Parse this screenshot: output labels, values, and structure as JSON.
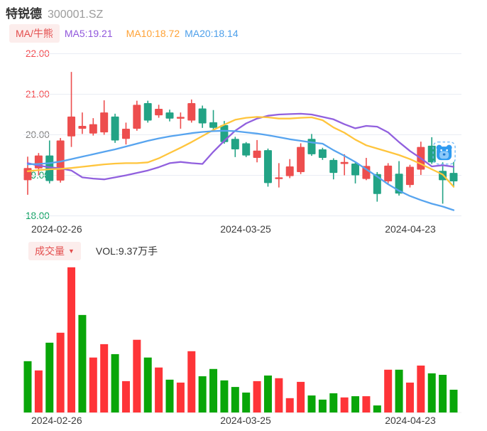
{
  "header": {
    "name": "特锐德",
    "code": "300001.SZ"
  },
  "indicator_bar": {
    "badge_label": "MA/牛熊",
    "items": [
      {
        "label": "MA5:19.21",
        "color": "#9157DC"
      },
      {
        "label": "MA10:18.72",
        "color": "#FFA235"
      },
      {
        "label": "MA20:18.14",
        "color": "#4D9FEA"
      }
    ]
  },
  "volume_bar": {
    "badge_label": "成交量",
    "arrow": "▼",
    "value_label": "VOL:9.37万手"
  },
  "colors": {
    "grid": "#E9EDF4",
    "baseline": "#EFEFEF",
    "candle_up": "#ED4E4E",
    "candle_down": "#22A385",
    "vol_up": "#FE3438",
    "vol_down": "#09A609",
    "marker_blue": "#2F9BF0",
    "marker_light": "#8CC9F9",
    "marker_dash": "#74BBF7"
  },
  "chart_data": {
    "type": "candlestick+volume",
    "title": "特锐德 300001.SZ",
    "ylim": [
      18,
      22
    ],
    "y_ticks": [
      {
        "label": "22.00",
        "value": 22,
        "color": "#F14B50"
      },
      {
        "label": "21.00",
        "value": 21,
        "color": "#F14B50"
      },
      {
        "label": "20.00",
        "value": 20,
        "color": "#808080"
      },
      {
        "label": "19.00",
        "value": 19,
        "color": "#0C9F60"
      },
      {
        "label": "18.00",
        "value": 18,
        "color": "#0C9F60"
      }
    ],
    "x_tick_labels": [
      "2024-02-26",
      "2024-03-25",
      "2024-04-23"
    ],
    "dates": [
      "2024-02-26",
      "2024-02-27",
      "2024-02-28",
      "2024-02-29",
      "2024-03-01",
      "2024-03-04",
      "2024-03-05",
      "2024-03-06",
      "2024-03-07",
      "2024-03-08",
      "2024-03-11",
      "2024-03-12",
      "2024-03-13",
      "2024-03-14",
      "2024-03-15",
      "2024-03-18",
      "2024-03-19",
      "2024-03-20",
      "2024-03-21",
      "2024-03-22",
      "2024-03-25",
      "2024-03-26",
      "2024-03-27",
      "2024-03-28",
      "2024-03-29",
      "2024-04-01",
      "2024-04-02",
      "2024-04-03",
      "2024-04-08",
      "2024-04-09",
      "2024-04-10",
      "2024-04-11",
      "2024-04-12",
      "2024-04-15",
      "2024-04-16",
      "2024-04-17",
      "2024-04-18",
      "2024-04-19",
      "2024-04-22",
      "2024-04-23"
    ],
    "candles_ohlc_order": [
      "open",
      "high",
      "low",
      "close"
    ],
    "candles": [
      [
        18.88,
        19.46,
        18.52,
        19.18
      ],
      [
        19.17,
        19.55,
        19.0,
        19.49
      ],
      [
        19.49,
        19.86,
        18.8,
        18.86
      ],
      [
        18.87,
        19.92,
        18.82,
        19.86
      ],
      [
        19.96,
        21.55,
        19.7,
        20.45
      ],
      [
        20.15,
        20.55,
        20.02,
        20.22
      ],
      [
        20.03,
        20.41,
        19.98,
        20.26
      ],
      [
        20.06,
        20.85,
        20.0,
        20.55
      ],
      [
        20.45,
        20.52,
        19.8,
        19.86
      ],
      [
        19.9,
        20.3,
        19.76,
        20.15
      ],
      [
        20.15,
        20.84,
        20.1,
        20.74
      ],
      [
        20.78,
        20.84,
        20.3,
        20.35
      ],
      [
        20.48,
        20.74,
        20.42,
        20.64
      ],
      [
        20.55,
        20.62,
        20.33,
        20.4
      ],
      [
        20.4,
        20.55,
        20.15,
        20.44
      ],
      [
        20.35,
        20.87,
        20.3,
        20.78
      ],
      [
        20.65,
        20.72,
        20.17,
        20.28
      ],
      [
        20.31,
        20.61,
        20.08,
        20.17
      ],
      [
        20.24,
        20.34,
        19.78,
        19.82
      ],
      [
        19.9,
        19.95,
        19.45,
        19.64
      ],
      [
        19.79,
        19.82,
        19.45,
        19.49
      ],
      [
        19.43,
        19.87,
        19.32,
        19.61
      ],
      [
        19.62,
        19.66,
        18.72,
        18.81
      ],
      [
        18.91,
        19.3,
        18.7,
        18.95
      ],
      [
        18.98,
        19.4,
        18.93,
        19.22
      ],
      [
        19.08,
        19.79,
        19.03,
        19.7
      ],
      [
        19.9,
        20.02,
        19.48,
        19.52
      ],
      [
        19.64,
        19.68,
        19.38,
        19.43
      ],
      [
        19.38,
        19.42,
        18.9,
        19.06
      ],
      [
        19.28,
        19.52,
        19.0,
        19.33
      ],
      [
        19.29,
        19.33,
        18.8,
        19.0
      ],
      [
        18.91,
        19.43,
        18.88,
        19.23
      ],
      [
        19.03,
        19.08,
        18.35,
        18.54
      ],
      [
        18.85,
        19.3,
        18.8,
        19.24
      ],
      [
        19.04,
        19.35,
        18.5,
        18.55
      ],
      [
        18.76,
        19.26,
        18.7,
        19.21
      ],
      [
        19.14,
        19.83,
        19.01,
        19.7
      ],
      [
        19.73,
        19.94,
        19.28,
        19.32
      ],
      [
        19.11,
        19.32,
        18.3,
        18.88
      ],
      [
        19.06,
        19.33,
        18.7,
        18.85
      ]
    ],
    "volumes_wanshou": [
      21.1,
      17.3,
      28.7,
      32.8,
      59.7,
      40.1,
      22.6,
      28.1,
      24.0,
      12.9,
      29.9,
      22.6,
      18.5,
      13.5,
      12.3,
      25.2,
      14.9,
      17.9,
      13.2,
      10.5,
      8.2,
      12.9,
      15.2,
      14.1,
      5.9,
      12.6,
      7.0,
      5.3,
      7.9,
      6.2,
      6.7,
      6.7,
      2.9,
      17.6,
      17.6,
      12.3,
      19.3,
      16.1,
      15.5,
      9.37
    ],
    "volume_direction": [
      "d",
      "u",
      "d",
      "u",
      "u",
      "d",
      "u",
      "u",
      "d",
      "u",
      "u",
      "d",
      "u",
      "d",
      "u",
      "u",
      "d",
      "d",
      "d",
      "d",
      "d",
      "u",
      "d",
      "u",
      "u",
      "u",
      "d",
      "d",
      "d",
      "u",
      "d",
      "u",
      "d",
      "u",
      "d",
      "u",
      "u",
      "d",
      "d",
      "d"
    ],
    "latest_volume_label": "VOL:9.37万手",
    "ma_series": [
      {
        "name": "MA5",
        "legend": "MA5:19.21",
        "color": "#9160DE",
        "values": [
          19.3,
          19.24,
          19.2,
          19.17,
          19.12,
          18.95,
          18.92,
          18.9,
          18.95,
          19.0,
          19.06,
          19.12,
          19.2,
          19.3,
          19.33,
          19.3,
          19.28,
          19.58,
          19.85,
          20.1,
          20.28,
          20.4,
          20.47,
          20.5,
          20.51,
          20.52,
          20.5,
          20.44,
          20.38,
          20.26,
          20.16,
          20.22,
          20.2,
          20.06,
          19.82,
          19.6,
          19.42,
          19.22,
          19.25,
          19.21
        ]
      },
      {
        "name": "MA10",
        "legend": "MA10:18.72",
        "color": "#FFC53D",
        "values": [
          19.1,
          19.13,
          19.15,
          19.16,
          19.18,
          19.21,
          19.24,
          19.27,
          19.29,
          19.3,
          19.3,
          19.32,
          19.42,
          19.55,
          19.68,
          19.82,
          19.97,
          20.12,
          20.25,
          20.37,
          20.42,
          20.44,
          20.43,
          20.4,
          20.4,
          20.42,
          20.43,
          20.36,
          20.18,
          20.05,
          19.88,
          19.74,
          19.66,
          19.58,
          19.5,
          19.4,
          19.28,
          19.15,
          19.02,
          18.72
        ]
      },
      {
        "name": "MA20",
        "legend": "MA20:18.14",
        "color": "#57A4EF",
        "values": [
          19.27,
          19.28,
          19.3,
          19.34,
          19.4,
          19.46,
          19.52,
          19.58,
          19.64,
          19.71,
          19.78,
          19.85,
          19.91,
          19.96,
          20.0,
          20.04,
          20.07,
          20.09,
          20.1,
          20.09,
          20.06,
          20.03,
          19.99,
          19.94,
          19.89,
          19.85,
          19.81,
          19.78,
          19.62,
          19.48,
          19.33,
          19.15,
          18.97,
          18.78,
          18.62,
          18.49,
          18.39,
          18.3,
          18.23,
          18.14
        ]
      }
    ],
    "marker": {
      "type": "bear",
      "index": 38,
      "price": 19.55
    }
  }
}
